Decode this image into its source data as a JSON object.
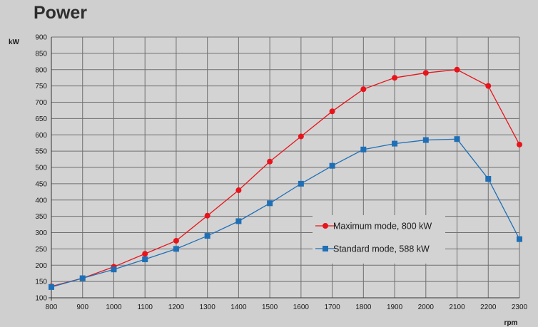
{
  "chart_data": {
    "type": "line",
    "title": "Power",
    "ylabel": "kW",
    "xlabel": "rpm",
    "x": [
      800,
      900,
      1000,
      1100,
      1200,
      1300,
      1400,
      1500,
      1600,
      1700,
      1800,
      1900,
      2000,
      2100,
      2200,
      2300
    ],
    "xlim": [
      800,
      2300
    ],
    "ylim": [
      100,
      900
    ],
    "yticks": [
      100,
      150,
      200,
      250,
      300,
      350,
      400,
      450,
      500,
      550,
      600,
      650,
      700,
      750,
      800,
      850,
      900
    ],
    "grid": true,
    "legend_position": "lower-right",
    "series": [
      {
        "name": "Maximum mode, 800 kW",
        "color": "#e8141b",
        "marker": "circle",
        "values": [
          135,
          160,
          195,
          235,
          275,
          352,
          430,
          518,
          595,
          672,
          740,
          775,
          790,
          800,
          750,
          570
        ]
      },
      {
        "name": "Standard mode, 588 kW",
        "color": "#1f6fb7",
        "marker": "square",
        "values": [
          133,
          160,
          187,
          218,
          250,
          290,
          335,
          390,
          450,
          505,
          555,
          573,
          584,
          587,
          465,
          280
        ]
      }
    ]
  }
}
